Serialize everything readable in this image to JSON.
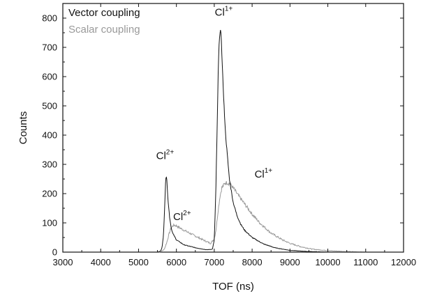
{
  "chart_data": {
    "type": "line",
    "title": "",
    "xlabel": "TOF (ns)",
    "ylabel": "Counts",
    "xlim": [
      3000,
      12000
    ],
    "ylim": [
      0,
      850
    ],
    "x_ticks": [
      3000,
      4000,
      5000,
      6000,
      7000,
      8000,
      9000,
      10000,
      11000,
      12000
    ],
    "y_ticks": [
      0,
      100,
      200,
      300,
      400,
      500,
      600,
      700,
      800
    ],
    "grid": false,
    "legend_position": "top-left",
    "series": [
      {
        "name": "Vector coupling",
        "color": "#111111",
        "points": [
          [
            5500,
            0
          ],
          [
            5580,
            3
          ],
          [
            5620,
            15
          ],
          [
            5660,
            60
          ],
          [
            5690,
            150
          ],
          [
            5710,
            235
          ],
          [
            5730,
            265
          ],
          [
            5750,
            240
          ],
          [
            5780,
            175
          ],
          [
            5820,
            120
          ],
          [
            5860,
            85
          ],
          [
            5900,
            65
          ],
          [
            6000,
            42
          ],
          [
            6200,
            25
          ],
          [
            6500,
            15
          ],
          [
            6800,
            8
          ],
          [
            6950,
            10
          ],
          [
            7000,
            40
          ],
          [
            7040,
            200
          ],
          [
            7080,
            450
          ],
          [
            7110,
            650
          ],
          [
            7140,
            740
          ],
          [
            7160,
            762
          ],
          [
            7180,
            740
          ],
          [
            7210,
            650
          ],
          [
            7250,
            520
          ],
          [
            7300,
            400
          ],
          [
            7400,
            250
          ],
          [
            7500,
            170
          ],
          [
            7600,
            125
          ],
          [
            7700,
            95
          ],
          [
            7800,
            75
          ],
          [
            8000,
            50
          ],
          [
            8300,
            28
          ],
          [
            8600,
            15
          ],
          [
            9000,
            6
          ],
          [
            9500,
            2
          ],
          [
            10000,
            0
          ]
        ]
      },
      {
        "name": "Scalar coupling",
        "color": "#999999",
        "points": [
          [
            5500,
            0
          ],
          [
            5600,
            2
          ],
          [
            5680,
            10
          ],
          [
            5750,
            35
          ],
          [
            5800,
            60
          ],
          [
            5850,
            80
          ],
          [
            5900,
            90
          ],
          [
            5950,
            92
          ],
          [
            6000,
            90
          ],
          [
            6100,
            82
          ],
          [
            6300,
            68
          ],
          [
            6500,
            55
          ],
          [
            6700,
            42
          ],
          [
            6900,
            30
          ],
          [
            7000,
            45
          ],
          [
            7050,
            80
          ],
          [
            7100,
            140
          ],
          [
            7150,
            190
          ],
          [
            7200,
            220
          ],
          [
            7300,
            238
          ],
          [
            7400,
            235
          ],
          [
            7500,
            220
          ],
          [
            7600,
            200
          ],
          [
            7800,
            165
          ],
          [
            8000,
            130
          ],
          [
            8200,
            100
          ],
          [
            8500,
            65
          ],
          [
            8800,
            42
          ],
          [
            9000,
            30
          ],
          [
            9300,
            18
          ],
          [
            9600,
            10
          ],
          [
            10000,
            5
          ],
          [
            10500,
            2
          ],
          [
            11000,
            0
          ]
        ]
      }
    ],
    "annotations": [
      {
        "label": "Cl",
        "superscript": "1+",
        "x": 7250,
        "y": 808,
        "color": "#111111"
      },
      {
        "label": "Cl",
        "superscript": "2+",
        "x": 5700,
        "y": 318,
        "color": "#111111"
      },
      {
        "label": "Cl",
        "superscript": "2+",
        "x": 6150,
        "y": 110,
        "color": "#111111"
      },
      {
        "label": "Cl",
        "superscript": "1+",
        "x": 8300,
        "y": 255,
        "color": "#111111"
      }
    ]
  }
}
